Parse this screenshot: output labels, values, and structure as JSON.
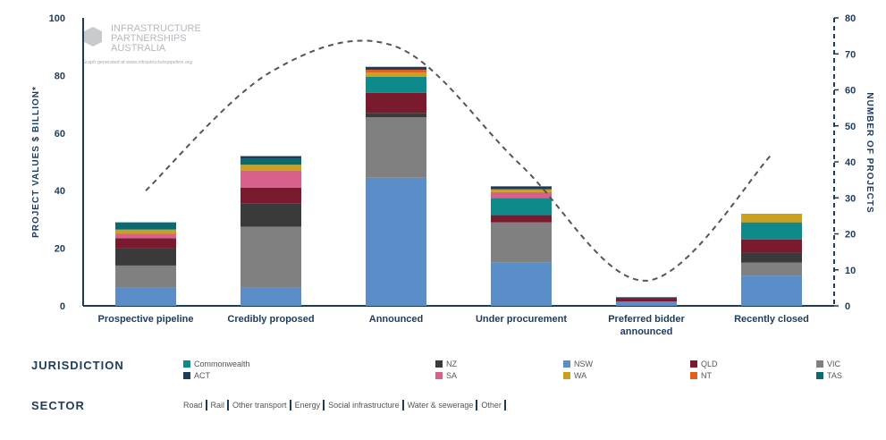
{
  "chart_data": {
    "type": "bar",
    "stacked": true,
    "categories": [
      "Prospective pipeline",
      "Credibly proposed",
      "Announced",
      "Under procurement",
      [
        "Preferred bidder",
        "announced"
      ],
      "Recently closed"
    ],
    "series": [
      {
        "name": "NSW",
        "color": "#5b8ec9",
        "values": [
          6.5,
          6.5,
          44.5,
          15,
          1.5,
          10.5
        ]
      },
      {
        "name": "VIC",
        "color": "#808080",
        "values": [
          7.5,
          21,
          21,
          14,
          0,
          4.5
        ]
      },
      {
        "name": "NZ",
        "color": "#3a3a3a",
        "values": [
          6,
          8,
          1.5,
          0,
          0,
          3.5
        ]
      },
      {
        "name": "QLD",
        "color": "#7a1a2e",
        "values": [
          3.5,
          5.5,
          7,
          2.5,
          1,
          4.5
        ]
      },
      {
        "name": "Commonwealth",
        "color": "#0f8a8a",
        "values": [
          0,
          0,
          5.5,
          6,
          0,
          6
        ]
      },
      {
        "name": "SA",
        "color": "#d9608a",
        "values": [
          1.5,
          6,
          0,
          2,
          0,
          0
        ]
      },
      {
        "name": "WA",
        "color": "#c9a020",
        "values": [
          1.5,
          2,
          1.5,
          1,
          0,
          3
        ]
      },
      {
        "name": "NT",
        "color": "#e06020",
        "values": [
          0,
          0,
          1,
          0,
          0,
          0
        ]
      },
      {
        "name": "TAS",
        "color": "#0a6a72",
        "values": [
          2.5,
          2,
          0,
          0,
          0,
          0
        ]
      },
      {
        "name": "ACT",
        "color": "#1f3b5c",
        "values": [
          0,
          1,
          1,
          1,
          0.5,
          0
        ]
      }
    ],
    "line": {
      "axis": "right",
      "style": "dashed",
      "color": "#555555",
      "values": [
        32,
        65,
        72,
        39,
        7,
        42
      ]
    },
    "ylabel": "PROJECT VALUES $ BILLION*",
    "y2label": "NUMBER OF PROJECTS",
    "ylim": [
      0,
      100
    ],
    "yticks": [
      0,
      20,
      40,
      60,
      80,
      100
    ],
    "y2lim": [
      0,
      80
    ],
    "y2ticks": [
      0,
      10,
      20,
      30,
      40,
      50,
      60,
      70,
      80
    ],
    "legend_position": "bottom"
  },
  "logo": {
    "line1": "INFRASTRUCTURE",
    "line2": "PARTNERSHIPS",
    "line3": "AUSTRALIA",
    "caption": "Graph generated at www.infrastructurepipeline.org"
  },
  "legend": {
    "jurisdiction_heading": "JURISDICTION",
    "jurisdiction_items": [
      {
        "label": "Commonwealth",
        "color": "#0f8a8a"
      },
      {
        "label": "NZ",
        "color": "#3a3a3a"
      },
      {
        "label": "NSW",
        "color": "#5b8ec9"
      },
      {
        "label": "QLD",
        "color": "#7a1a2e"
      },
      {
        "label": "VIC",
        "color": "#808080"
      },
      {
        "label": "ACT",
        "color": "#1f3b5c"
      },
      {
        "label": "SA",
        "color": "#d9608a"
      },
      {
        "label": "WA",
        "color": "#c9a020"
      },
      {
        "label": "NT",
        "color": "#e06020"
      },
      {
        "label": "TAS",
        "color": "#0a6a72"
      }
    ],
    "sector_heading": "SECTOR",
    "sector_items": [
      "Road",
      "Rail",
      "Other transport",
      "Energy",
      "Social infrastructure",
      "Water & sewerage",
      "Other"
    ]
  }
}
